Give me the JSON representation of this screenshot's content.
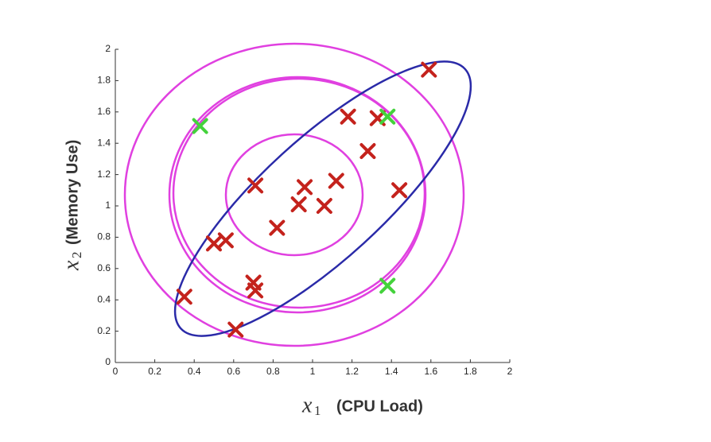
{
  "chart_data": {
    "type": "scatter",
    "xlabel_symbol": "x",
    "xlabel_subscript": "1",
    "xlabel": "(CPU Load)",
    "ylabel_symbol": "x",
    "ylabel_subscript": "2",
    "ylabel": "(Memory Use)",
    "xlim": [
      0,
      2
    ],
    "xticks": [
      0,
      0.2,
      0.4,
      0.6,
      0.8,
      1,
      1.2,
      1.4,
      1.6,
      1.8,
      2
    ],
    "ylim": [
      0,
      2
    ],
    "yticks": [
      0,
      0.2,
      0.4,
      0.6,
      0.8,
      1,
      1.2,
      1.4,
      1.6,
      1.8,
      2
    ],
    "series": [
      {
        "color": "#c4221c",
        "x": [
          1.59,
          1.18,
          1.33,
          1.28,
          1.12,
          1.44,
          0.71,
          0.96,
          0.93,
          1.06,
          0.82,
          0.5,
          0.56,
          0.7,
          0.71,
          0.35,
          0.61
        ],
        "values": [
          1.87,
          1.57,
          1.56,
          1.35,
          1.16,
          1.1,
          1.13,
          1.12,
          1.01,
          1.0,
          0.86,
          0.76,
          0.78,
          0.51,
          0.46,
          0.42,
          0.21
        ]
      },
      {
        "color": "#44d23c",
        "x": [
          0.43,
          1.38,
          1.38
        ],
        "values": [
          1.51,
          0.49,
          1.57
        ]
      }
    ]
  }
}
